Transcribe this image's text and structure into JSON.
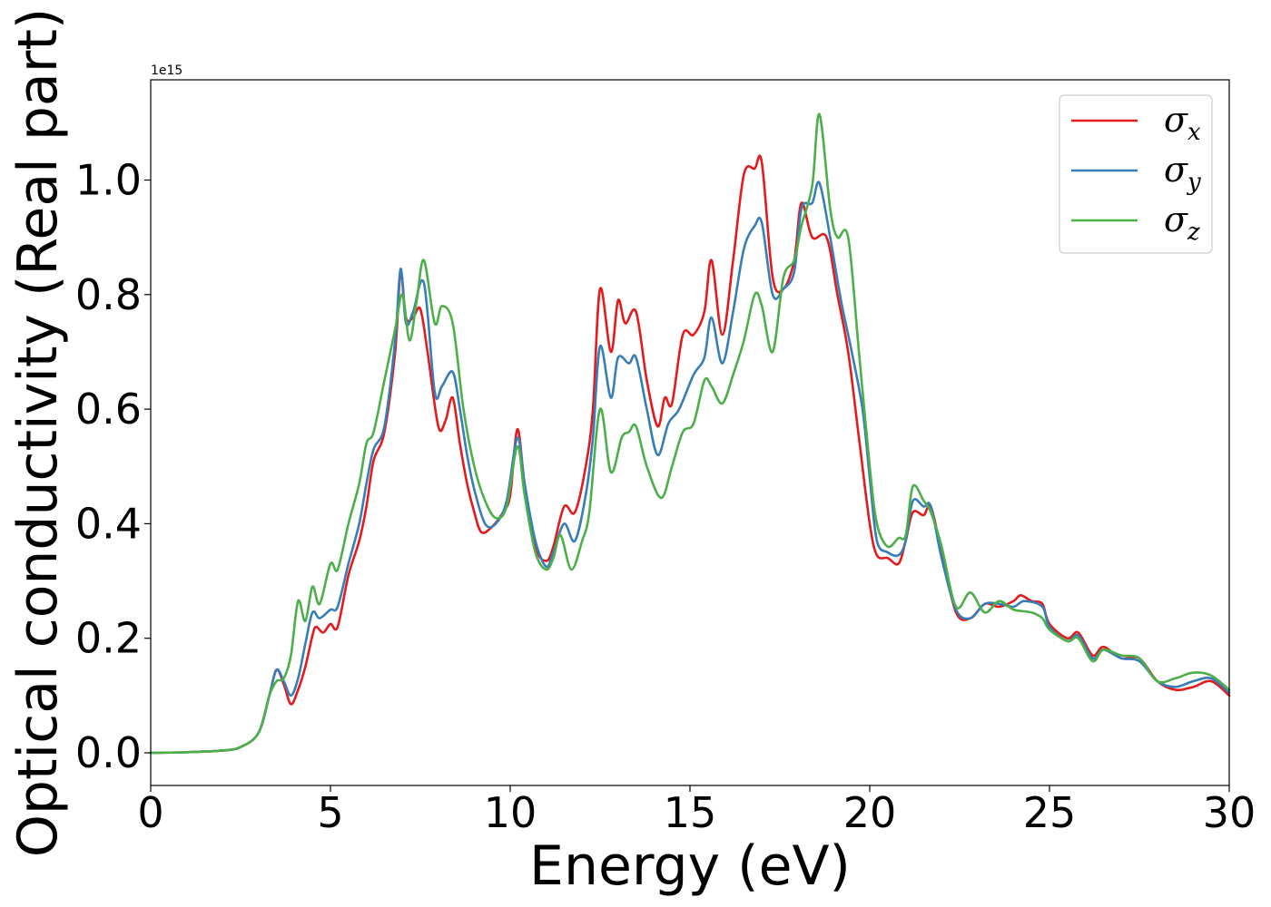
{
  "chart_data": {
    "type": "line",
    "xlabel": "Energy (eV)",
    "ylabel": "Optical conductivity (Real part)",
    "y_offset_label": "1e15",
    "xlim": [
      0,
      30
    ],
    "ylim": [
      -0.057,
      1.175
    ],
    "x_ticks": [
      0,
      5,
      10,
      15,
      20,
      25,
      30
    ],
    "x_tick_labels": [
      "0",
      "5",
      "10",
      "15",
      "20",
      "25",
      "30"
    ],
    "y_ticks": [
      0.0,
      0.2,
      0.4,
      0.6,
      0.8,
      1.0
    ],
    "y_tick_labels": [
      "0.0",
      "0.2",
      "0.4",
      "0.6",
      "0.8",
      "1.0"
    ],
    "grid": false,
    "legend_position": "top-right",
    "series": [
      {
        "name": "σx",
        "label_main": "σ",
        "label_sub": "x",
        "color": "#e41a1c",
        "points": [
          [
            0,
            0
          ],
          [
            1,
            0.001
          ],
          [
            2,
            0.004
          ],
          [
            2.5,
            0.01
          ],
          [
            3,
            0.035
          ],
          [
            3.3,
            0.1
          ],
          [
            3.5,
            0.145
          ],
          [
            3.7,
            0.12
          ],
          [
            3.9,
            0.085
          ],
          [
            4.1,
            0.11
          ],
          [
            4.3,
            0.15
          ],
          [
            4.5,
            0.205
          ],
          [
            4.6,
            0.22
          ],
          [
            4.8,
            0.21
          ],
          [
            5,
            0.225
          ],
          [
            5.2,
            0.22
          ],
          [
            5.5,
            0.31
          ],
          [
            5.8,
            0.37
          ],
          [
            6,
            0.43
          ],
          [
            6.2,
            0.51
          ],
          [
            6.5,
            0.56
          ],
          [
            6.8,
            0.7
          ],
          [
            6.95,
            0.84
          ],
          [
            7.1,
            0.76
          ],
          [
            7.3,
            0.76
          ],
          [
            7.5,
            0.775
          ],
          [
            7.7,
            0.7
          ],
          [
            8,
            0.57
          ],
          [
            8.2,
            0.58
          ],
          [
            8.4,
            0.62
          ],
          [
            8.6,
            0.54
          ],
          [
            8.8,
            0.47
          ],
          [
            9,
            0.42
          ],
          [
            9.2,
            0.385
          ],
          [
            9.5,
            0.395
          ],
          [
            9.8,
            0.42
          ],
          [
            10,
            0.45
          ],
          [
            10.2,
            0.565
          ],
          [
            10.4,
            0.47
          ],
          [
            10.7,
            0.36
          ],
          [
            11,
            0.335
          ],
          [
            11.2,
            0.36
          ],
          [
            11.5,
            0.43
          ],
          [
            11.8,
            0.42
          ],
          [
            12.1,
            0.5
          ],
          [
            12.3,
            0.6
          ],
          [
            12.5,
            0.81
          ],
          [
            12.8,
            0.7
          ],
          [
            13,
            0.79
          ],
          [
            13.2,
            0.75
          ],
          [
            13.5,
            0.77
          ],
          [
            13.8,
            0.65
          ],
          [
            14.1,
            0.57
          ],
          [
            14.3,
            0.62
          ],
          [
            14.5,
            0.61
          ],
          [
            14.8,
            0.73
          ],
          [
            15.1,
            0.73
          ],
          [
            15.4,
            0.77
          ],
          [
            15.6,
            0.86
          ],
          [
            15.9,
            0.73
          ],
          [
            16.2,
            0.86
          ],
          [
            16.5,
            1.01
          ],
          [
            16.8,
            1.02
          ],
          [
            17,
            1.03
          ],
          [
            17.3,
            0.83
          ],
          [
            17.6,
            0.81
          ],
          [
            17.9,
            0.86
          ],
          [
            18.1,
            0.96
          ],
          [
            18.4,
            0.9
          ],
          [
            18.8,
            0.9
          ],
          [
            19.1,
            0.8
          ],
          [
            19.4,
            0.7
          ],
          [
            19.7,
            0.55
          ],
          [
            20,
            0.4
          ],
          [
            20.2,
            0.345
          ],
          [
            20.5,
            0.34
          ],
          [
            20.8,
            0.33
          ],
          [
            21,
            0.37
          ],
          [
            21.2,
            0.42
          ],
          [
            21.5,
            0.415
          ],
          [
            21.7,
            0.43
          ],
          [
            22,
            0.35
          ],
          [
            22.4,
            0.245
          ],
          [
            22.8,
            0.235
          ],
          [
            23.2,
            0.26
          ],
          [
            23.6,
            0.255
          ],
          [
            24,
            0.265
          ],
          [
            24.2,
            0.275
          ],
          [
            24.5,
            0.265
          ],
          [
            24.8,
            0.26
          ],
          [
            25,
            0.225
          ],
          [
            25.5,
            0.2
          ],
          [
            25.8,
            0.21
          ],
          [
            26.2,
            0.17
          ],
          [
            26.5,
            0.185
          ],
          [
            27,
            0.165
          ],
          [
            27.5,
            0.165
          ],
          [
            28,
            0.125
          ],
          [
            28.5,
            0.11
          ],
          [
            29,
            0.115
          ],
          [
            29.5,
            0.125
          ],
          [
            30,
            0.1
          ]
        ]
      },
      {
        "name": "σy",
        "label_main": "σ",
        "label_sub": "y",
        "color": "#377eb8",
        "points": [
          [
            0,
            0
          ],
          [
            1,
            0.001
          ],
          [
            2,
            0.004
          ],
          [
            2.5,
            0.01
          ],
          [
            3,
            0.035
          ],
          [
            3.3,
            0.1
          ],
          [
            3.5,
            0.145
          ],
          [
            3.7,
            0.125
          ],
          [
            3.9,
            0.1
          ],
          [
            4.1,
            0.13
          ],
          [
            4.3,
            0.19
          ],
          [
            4.5,
            0.245
          ],
          [
            4.7,
            0.235
          ],
          [
            5,
            0.25
          ],
          [
            5.2,
            0.255
          ],
          [
            5.5,
            0.33
          ],
          [
            5.8,
            0.4
          ],
          [
            6,
            0.47
          ],
          [
            6.2,
            0.53
          ],
          [
            6.5,
            0.57
          ],
          [
            6.8,
            0.72
          ],
          [
            6.95,
            0.845
          ],
          [
            7.1,
            0.75
          ],
          [
            7.3,
            0.77
          ],
          [
            7.6,
            0.82
          ],
          [
            7.9,
            0.63
          ],
          [
            8.1,
            0.64
          ],
          [
            8.4,
            0.665
          ],
          [
            8.6,
            0.6
          ],
          [
            8.8,
            0.52
          ],
          [
            9,
            0.46
          ],
          [
            9.3,
            0.4
          ],
          [
            9.6,
            0.4
          ],
          [
            9.9,
            0.44
          ],
          [
            10.2,
            0.55
          ],
          [
            10.4,
            0.47
          ],
          [
            10.7,
            0.37
          ],
          [
            11,
            0.325
          ],
          [
            11.2,
            0.35
          ],
          [
            11.5,
            0.4
          ],
          [
            11.8,
            0.37
          ],
          [
            12.1,
            0.45
          ],
          [
            12.3,
            0.55
          ],
          [
            12.5,
            0.71
          ],
          [
            12.8,
            0.62
          ],
          [
            13,
            0.69
          ],
          [
            13.3,
            0.68
          ],
          [
            13.5,
            0.69
          ],
          [
            13.8,
            0.6
          ],
          [
            14.1,
            0.52
          ],
          [
            14.4,
            0.575
          ],
          [
            14.7,
            0.6
          ],
          [
            15.1,
            0.66
          ],
          [
            15.4,
            0.69
          ],
          [
            15.6,
            0.76
          ],
          [
            15.9,
            0.68
          ],
          [
            16.2,
            0.77
          ],
          [
            16.5,
            0.88
          ],
          [
            16.8,
            0.92
          ],
          [
            17,
            0.925
          ],
          [
            17.3,
            0.8
          ],
          [
            17.6,
            0.81
          ],
          [
            17.9,
            0.84
          ],
          [
            18.1,
            0.95
          ],
          [
            18.4,
            0.96
          ],
          [
            18.6,
            0.995
          ],
          [
            18.9,
            0.9
          ],
          [
            19.2,
            0.79
          ],
          [
            19.5,
            0.7
          ],
          [
            19.8,
            0.6
          ],
          [
            20,
            0.48
          ],
          [
            20.2,
            0.37
          ],
          [
            20.5,
            0.35
          ],
          [
            20.8,
            0.345
          ],
          [
            21,
            0.37
          ],
          [
            21.2,
            0.44
          ],
          [
            21.5,
            0.43
          ],
          [
            21.7,
            0.43
          ],
          [
            22,
            0.34
          ],
          [
            22.4,
            0.25
          ],
          [
            22.8,
            0.235
          ],
          [
            23.2,
            0.26
          ],
          [
            23.6,
            0.26
          ],
          [
            24,
            0.255
          ],
          [
            24.3,
            0.265
          ],
          [
            24.8,
            0.255
          ],
          [
            25,
            0.22
          ],
          [
            25.5,
            0.195
          ],
          [
            25.8,
            0.205
          ],
          [
            26.2,
            0.165
          ],
          [
            26.5,
            0.18
          ],
          [
            27,
            0.165
          ],
          [
            27.5,
            0.16
          ],
          [
            28,
            0.125
          ],
          [
            28.5,
            0.115
          ],
          [
            29,
            0.125
          ],
          [
            29.5,
            0.13
          ],
          [
            30,
            0.105
          ]
        ]
      },
      {
        "name": "σz",
        "label_main": "σ",
        "label_sub": "z",
        "color": "#4daf4a",
        "points": [
          [
            0,
            0
          ],
          [
            1,
            0.001
          ],
          [
            2,
            0.004
          ],
          [
            2.5,
            0.01
          ],
          [
            3,
            0.035
          ],
          [
            3.3,
            0.1
          ],
          [
            3.5,
            0.125
          ],
          [
            3.7,
            0.13
          ],
          [
            3.9,
            0.17
          ],
          [
            4.1,
            0.265
          ],
          [
            4.3,
            0.23
          ],
          [
            4.5,
            0.29
          ],
          [
            4.7,
            0.26
          ],
          [
            5,
            0.33
          ],
          [
            5.2,
            0.32
          ],
          [
            5.5,
            0.4
          ],
          [
            5.8,
            0.47
          ],
          [
            6,
            0.54
          ],
          [
            6.2,
            0.56
          ],
          [
            6.5,
            0.65
          ],
          [
            6.8,
            0.74
          ],
          [
            7,
            0.8
          ],
          [
            7.2,
            0.72
          ],
          [
            7.4,
            0.79
          ],
          [
            7.6,
            0.86
          ],
          [
            7.9,
            0.75
          ],
          [
            8.1,
            0.78
          ],
          [
            8.4,
            0.75
          ],
          [
            8.7,
            0.6
          ],
          [
            9,
            0.5
          ],
          [
            9.3,
            0.44
          ],
          [
            9.6,
            0.41
          ],
          [
            9.9,
            0.43
          ],
          [
            10.2,
            0.535
          ],
          [
            10.4,
            0.45
          ],
          [
            10.7,
            0.35
          ],
          [
            11,
            0.32
          ],
          [
            11.2,
            0.34
          ],
          [
            11.4,
            0.38
          ],
          [
            11.7,
            0.32
          ],
          [
            12,
            0.37
          ],
          [
            12.2,
            0.42
          ],
          [
            12.5,
            0.6
          ],
          [
            12.8,
            0.49
          ],
          [
            13.1,
            0.55
          ],
          [
            13.3,
            0.56
          ],
          [
            13.5,
            0.57
          ],
          [
            13.8,
            0.5
          ],
          [
            14.2,
            0.445
          ],
          [
            14.5,
            0.5
          ],
          [
            14.8,
            0.56
          ],
          [
            15.1,
            0.575
          ],
          [
            15.4,
            0.65
          ],
          [
            15.6,
            0.64
          ],
          [
            15.9,
            0.61
          ],
          [
            16.2,
            0.66
          ],
          [
            16.5,
            0.72
          ],
          [
            16.8,
            0.8
          ],
          [
            17,
            0.78
          ],
          [
            17.3,
            0.7
          ],
          [
            17.6,
            0.83
          ],
          [
            17.9,
            0.86
          ],
          [
            18.1,
            0.92
          ],
          [
            18.4,
            0.99
          ],
          [
            18.6,
            1.115
          ],
          [
            18.9,
            0.95
          ],
          [
            19.1,
            0.9
          ],
          [
            19.4,
            0.9
          ],
          [
            19.7,
            0.7
          ],
          [
            20,
            0.5
          ],
          [
            20.2,
            0.4
          ],
          [
            20.5,
            0.36
          ],
          [
            20.8,
            0.375
          ],
          [
            21,
            0.38
          ],
          [
            21.2,
            0.465
          ],
          [
            21.5,
            0.44
          ],
          [
            21.7,
            0.42
          ],
          [
            22,
            0.36
          ],
          [
            22.4,
            0.255
          ],
          [
            22.8,
            0.28
          ],
          [
            23.2,
            0.245
          ],
          [
            23.6,
            0.265
          ],
          [
            24,
            0.25
          ],
          [
            24.5,
            0.245
          ],
          [
            24.8,
            0.235
          ],
          [
            25,
            0.215
          ],
          [
            25.5,
            0.195
          ],
          [
            25.8,
            0.2
          ],
          [
            26.2,
            0.16
          ],
          [
            26.5,
            0.18
          ],
          [
            27,
            0.17
          ],
          [
            27.5,
            0.165
          ],
          [
            28,
            0.125
          ],
          [
            28.5,
            0.13
          ],
          [
            29,
            0.14
          ],
          [
            29.5,
            0.135
          ],
          [
            30,
            0.11
          ]
        ]
      }
    ]
  }
}
